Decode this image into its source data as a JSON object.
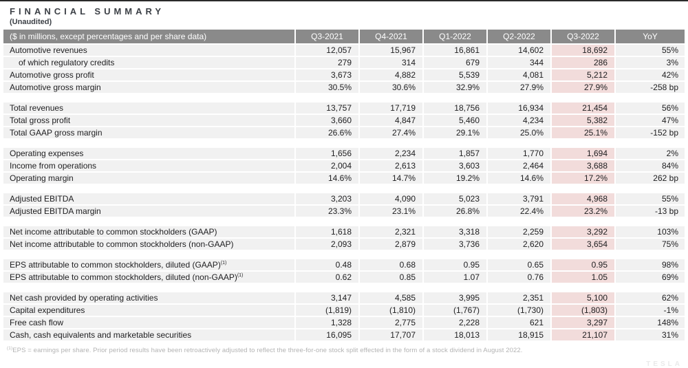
{
  "page": {
    "title": "FINANCIAL SUMMARY",
    "subtitle": "(Unaudited)",
    "watermark": "TESLA"
  },
  "table": {
    "colors": {
      "header_bg": "#8a8a8a",
      "row_bg": "#f1f1f1",
      "highlight_bg": "#f2dcdb"
    },
    "header": {
      "label": "($ in millions, except percentages and per share data)",
      "columns": [
        "Q3-2021",
        "Q4-2021",
        "Q1-2022",
        "Q2-2022",
        "Q3-2022",
        "YoY"
      ],
      "highlight_column": "Q3-2022"
    },
    "sections": [
      {
        "rows": [
          {
            "label": "Automotive revenues",
            "values": [
              "12,057",
              "15,967",
              "16,861",
              "14,602",
              "18,692",
              "55%"
            ]
          },
          {
            "label": "of which regulatory credits",
            "indent": true,
            "values": [
              "279",
              "314",
              "679",
              "344",
              "286",
              "3%"
            ]
          },
          {
            "label": "Automotive gross profit",
            "values": [
              "3,673",
              "4,882",
              "5,539",
              "4,081",
              "5,212",
              "42%"
            ]
          },
          {
            "label": "Automotive gross margin",
            "values": [
              "30.5%",
              "30.6%",
              "32.9%",
              "27.9%",
              "27.9%",
              "-258 bp"
            ]
          }
        ]
      },
      {
        "rows": [
          {
            "label": "Total revenues",
            "values": [
              "13,757",
              "17,719",
              "18,756",
              "16,934",
              "21,454",
              "56%"
            ]
          },
          {
            "label": "Total gross profit",
            "values": [
              "3,660",
              "4,847",
              "5,460",
              "4,234",
              "5,382",
              "47%"
            ]
          },
          {
            "label": "Total GAAP gross margin",
            "values": [
              "26.6%",
              "27.4%",
              "29.1%",
              "25.0%",
              "25.1%",
              "-152 bp"
            ]
          }
        ]
      },
      {
        "rows": [
          {
            "label": "Operating expenses",
            "values": [
              "1,656",
              "2,234",
              "1,857",
              "1,770",
              "1,694",
              "2%"
            ]
          },
          {
            "label": "Income from operations",
            "values": [
              "2,004",
              "2,613",
              "3,603",
              "2,464",
              "3,688",
              "84%"
            ]
          },
          {
            "label": "Operating margin",
            "values": [
              "14.6%",
              "14.7%",
              "19.2%",
              "14.6%",
              "17.2%",
              "262 bp"
            ]
          }
        ]
      },
      {
        "rows": [
          {
            "label": "Adjusted EBITDA",
            "values": [
              "3,203",
              "4,090",
              "5,023",
              "3,791",
              "4,968",
              "55%"
            ]
          },
          {
            "label": "Adjusted EBITDA margin",
            "values": [
              "23.3%",
              "23.1%",
              "26.8%",
              "22.4%",
              "23.2%",
              "-13 bp"
            ]
          }
        ]
      },
      {
        "rows": [
          {
            "label": "Net income attributable to common stockholders (GAAP)",
            "values": [
              "1,618",
              "2,321",
              "3,318",
              "2,259",
              "3,292",
              "103%"
            ]
          },
          {
            "label": "Net income attributable to common stockholders (non-GAAP)",
            "values": [
              "2,093",
              "2,879",
              "3,736",
              "2,620",
              "3,654",
              "75%"
            ]
          }
        ]
      },
      {
        "rows": [
          {
            "label": "EPS attributable to common stockholders, diluted (GAAP)",
            "sup": "(1)",
            "values": [
              "0.48",
              "0.68",
              "0.95",
              "0.65",
              "0.95",
              "98%"
            ]
          },
          {
            "label": "EPS attributable to common stockholders, diluted (non-GAAP)",
            "sup": "(1)",
            "values": [
              "0.62",
              "0.85",
              "1.07",
              "0.76",
              "1.05",
              "69%"
            ]
          }
        ]
      },
      {
        "rows": [
          {
            "label": "Net cash provided by operating activities",
            "values": [
              "3,147",
              "4,585",
              "3,995",
              "2,351",
              "5,100",
              "62%"
            ]
          },
          {
            "label": "Capital expenditures",
            "values": [
              "(1,819)",
              "(1,810)",
              "(1,767)",
              "(1,730)",
              "(1,803)",
              "-1%"
            ]
          },
          {
            "label": "Free cash flow",
            "values": [
              "1,328",
              "2,775",
              "2,228",
              "621",
              "3,297",
              "148%"
            ]
          },
          {
            "label": "Cash, cash equivalents and marketable securities",
            "values": [
              "16,095",
              "17,707",
              "18,013",
              "18,915",
              "21,107",
              "31%"
            ]
          }
        ]
      }
    ]
  },
  "footnote": {
    "sup": "(1)",
    "text": "EPS = earnings per share. Prior period results have been retroactively adjusted to reflect the three-for-one stock split effected in the form of a stock dividend in August 2022."
  }
}
